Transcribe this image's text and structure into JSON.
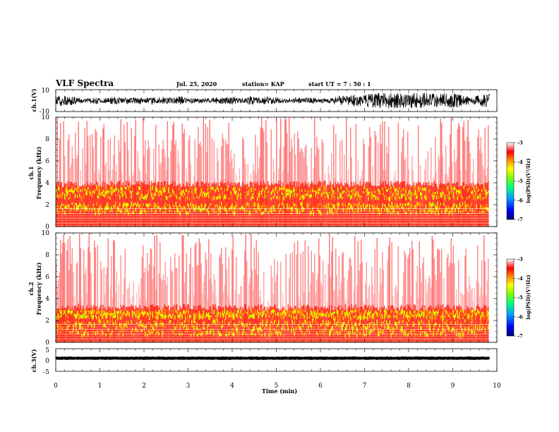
{
  "header": {
    "title": "VLF Spectra",
    "date": "Jul. 25, 2020",
    "station": "station= KAP",
    "start": "start UT =  7 : 50 : 1"
  },
  "chart_data": [
    {
      "id": "ch1_wave",
      "type": "line",
      "ylabel": "ch.1(V)",
      "ylim": [
        -10,
        10
      ],
      "y_ticklabels": [
        "10",
        "-10"
      ],
      "xlim": [
        0,
        10
      ],
      "description_signal": "noisy waveform spanning about -8 to 8 V"
    },
    {
      "id": "ch1_spec",
      "type": "heatmap",
      "ylabel_line1": "ch.1",
      "ylabel_line2": "Frequency (kHz)",
      "ylim": [
        0,
        10
      ],
      "y_ticklabels": [
        "0",
        "2",
        "4",
        "6",
        "8",
        "10"
      ],
      "xlim": [
        0,
        10
      ],
      "data_extent_min": 9.83,
      "bands_khz": [
        [
          1.2,
          2.1
        ],
        [
          2.5,
          3.6
        ]
      ],
      "colorbar": {
        "label": "log(PSD)(V²/Hz)",
        "range": [
          -7,
          -3
        ],
        "ticklabels": [
          "-3",
          "-4",
          "-5",
          "-6",
          "-7"
        ]
      }
    },
    {
      "id": "ch2_spec",
      "type": "heatmap",
      "ylabel_line1": "ch.2",
      "ylabel_line2": "Frequency (kHz)",
      "ylim": [
        0,
        10
      ],
      "y_ticklabels": [
        "0",
        "2",
        "4",
        "6",
        "8",
        "10"
      ],
      "xlim": [
        0,
        10
      ],
      "data_extent_min": 9.83,
      "bands_khz": [
        [
          0.6,
          2.0
        ],
        [
          2.2,
          2.9
        ]
      ],
      "colorbar": {
        "label": "log(PSD)(V²/Hz)",
        "range": [
          -7,
          -3
        ],
        "ticklabels": [
          "-3",
          "-4",
          "-5",
          "-6",
          "-7"
        ]
      }
    },
    {
      "id": "ch3_wave",
      "type": "line",
      "ylabel": "ch.3(V)",
      "ylim": [
        -5,
        5
      ],
      "y_ticklabels": [
        "5",
        "0",
        "-5"
      ],
      "xlim": [
        0,
        10
      ],
      "x_ticklabels": [
        "0",
        "1",
        "2",
        "3",
        "4",
        "5",
        "6",
        "7",
        "8",
        "9",
        "10"
      ],
      "xlabel": "Time (min)",
      "signal_band_v": [
        -0.6,
        0.6
      ],
      "signal_offset_v": 0.8
    }
  ]
}
